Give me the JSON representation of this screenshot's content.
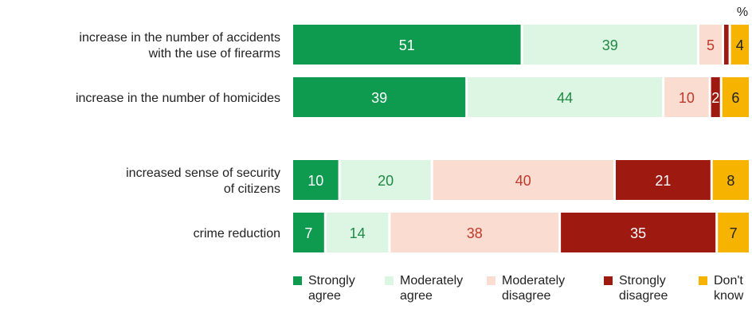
{
  "chart_data": {
    "type": "bar",
    "orientation": "horizontal",
    "stacked": true,
    "unit": "%",
    "categories": [
      "increase in the number of accidents\nwith the use of  firearms",
      "increase in the number of homicides",
      "increased sense of security\nof citizens",
      "crime reduction"
    ],
    "series": [
      {
        "name": "Strongly\nagree",
        "color": "#0e9a4f",
        "label_color": "#ffffff",
        "values": [
          51,
          39,
          10,
          7
        ]
      },
      {
        "name": "Moderately\nagree",
        "color": "#ddf5e3",
        "label_color": "#1f8a44",
        "values": [
          39,
          44,
          20,
          14
        ]
      },
      {
        "name": "Moderately\ndisagree",
        "color": "#fbdcd1",
        "label_color": "#c0392b",
        "values": [
          5,
          10,
          40,
          38
        ]
      },
      {
        "name": "Strongly\ndisagree",
        "color": "#9e1a10",
        "label_color": "#ffffff",
        "values": [
          1,
          2,
          21,
          35
        ]
      },
      {
        "name": "Don't\nknow",
        "color": "#f6b400",
        "label_color": "#222222",
        "values": [
          4,
          6,
          8,
          7
        ]
      }
    ],
    "data_labels": [
      [
        "51",
        "39",
        "5",
        "",
        "4"
      ],
      [
        "39",
        "44",
        "10",
        "2",
        "6"
      ],
      [
        "10",
        "20",
        "40",
        "21",
        "8"
      ],
      [
        "7",
        "14",
        "38",
        "35",
        "7"
      ]
    ],
    "legend_position": "bottom",
    "grid": false
  }
}
